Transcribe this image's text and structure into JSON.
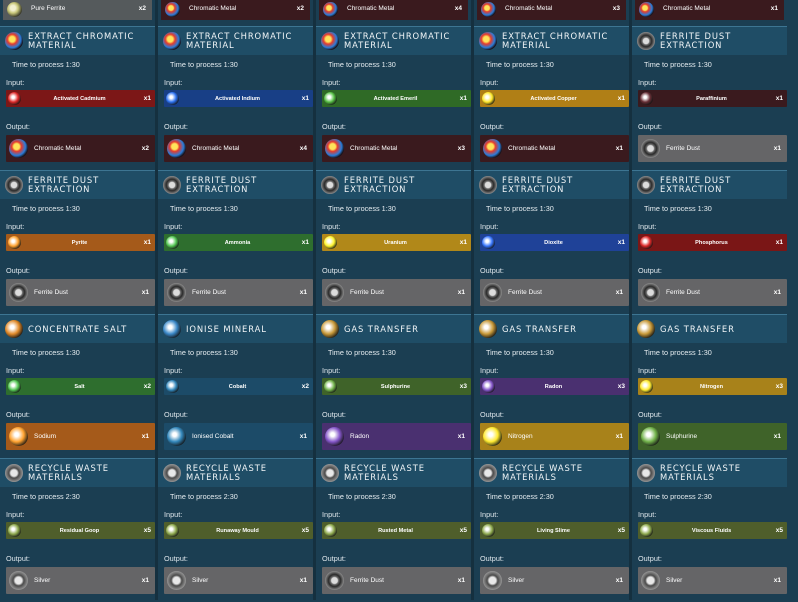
{
  "labels": {
    "input": "Input:",
    "output": "Output:"
  },
  "top_row": [
    {
      "name": "Pure Ferrite",
      "qty": "x2",
      "color": "#555a5c",
      "icon": "pure-ferrite-icon"
    },
    {
      "name": "Chromatic Metal",
      "qty": "x2",
      "color": "#3a1a1e",
      "icon": "chromatic-metal-icon"
    },
    {
      "name": "Chromatic Metal",
      "qty": "x4",
      "color": "#3a1a1e",
      "icon": "chromatic-metal-icon"
    },
    {
      "name": "Chromatic Metal",
      "qty": "x3",
      "color": "#3a1a1e",
      "icon": "chromatic-metal-icon"
    },
    {
      "name": "Chromatic Metal",
      "qty": "x1",
      "color": "#3a1a1e",
      "icon": "chromatic-metal-icon"
    }
  ],
  "rows": [
    [
      {
        "title": "Extract Chromatic\nMaterial",
        "time": "Time to process 1:30",
        "input": {
          "name": "Activated Cadmium",
          "qty": "x1",
          "color": "#7c1717",
          "icon": "activated-cadmium-icon"
        },
        "output": {
          "name": "Chromatic Metal",
          "qty": "x2",
          "color": "#3a1a1e",
          "icon": "chromatic-metal-icon"
        }
      },
      {
        "title": "Extract Chromatic\nMaterial",
        "time": "Time to process 1:30",
        "input": {
          "name": "Activated Indium",
          "qty": "x1",
          "color": "#183f86",
          "icon": "activated-indium-icon"
        },
        "output": {
          "name": "Chromatic Metal",
          "qty": "x4",
          "color": "#3a1a1e",
          "icon": "chromatic-metal-icon"
        }
      },
      {
        "title": "Extract Chromatic\nMaterial",
        "time": "Time to process 1:30",
        "input": {
          "name": "Activated Emeril",
          "qty": "x1",
          "color": "#2f6a26",
          "icon": "activated-emeril-icon"
        },
        "output": {
          "name": "Chromatic Metal",
          "qty": "x3",
          "color": "#3a1a1e",
          "icon": "chromatic-metal-icon"
        }
      },
      {
        "title": "Extract Chromatic\nMaterial",
        "time": "Time to process 1:30",
        "input": {
          "name": "Activated Copper",
          "qty": "x1",
          "color": "#b07f16",
          "icon": "activated-copper-icon"
        },
        "output": {
          "name": "Chromatic Metal",
          "qty": "x1",
          "color": "#3a1a1e",
          "icon": "chromatic-metal-icon"
        }
      },
      {
        "title": "Ferrite Dust Extraction",
        "time": "Time to process 1:30",
        "input": {
          "name": "Paraffinium",
          "qty": "x1",
          "color": "#3a1a1e",
          "icon": "paraffinium-icon"
        },
        "output": {
          "name": "Ferrite Dust",
          "qty": "x1",
          "color": "#656567",
          "icon": "ferrite-dust-icon"
        }
      }
    ],
    [
      {
        "title": "Ferrite Dust Extraction",
        "time": "Time to process 1:30",
        "input": {
          "name": "Pyrite",
          "qty": "x1",
          "color": "#a55a1a",
          "icon": "pyrite-icon"
        },
        "output": {
          "name": "Ferrite Dust",
          "qty": "x1",
          "color": "#656567",
          "icon": "ferrite-dust-icon"
        }
      },
      {
        "title": "Ferrite Dust Extraction",
        "time": "Time to process 1:30",
        "input": {
          "name": "Ammonia",
          "qty": "x1",
          "color": "#2e6e2e",
          "icon": "ammonia-icon"
        },
        "output": {
          "name": "Ferrite Dust",
          "qty": "x1",
          "color": "#656567",
          "icon": "ferrite-dust-icon"
        }
      },
      {
        "title": "Ferrite Dust Extraction",
        "time": "Time to process 1:30",
        "input": {
          "name": "Uranium",
          "qty": "x1",
          "color": "#b18819",
          "icon": "uranium-icon"
        },
        "output": {
          "name": "Ferrite Dust",
          "qty": "x1",
          "color": "#656567",
          "icon": "ferrite-dust-icon"
        }
      },
      {
        "title": "Ferrite Dust Extraction",
        "time": "Time to process 1:30",
        "input": {
          "name": "Dioxite",
          "qty": "x1",
          "color": "#1f4298",
          "icon": "dioxite-icon"
        },
        "output": {
          "name": "Ferrite Dust",
          "qty": "x1",
          "color": "#656567",
          "icon": "ferrite-dust-icon"
        }
      },
      {
        "title": "Ferrite Dust Extraction",
        "time": "Time to process 1:30",
        "input": {
          "name": "Phosphorus",
          "qty": "x1",
          "color": "#7a1616",
          "icon": "phosphorus-icon"
        },
        "output": {
          "name": "Ferrite Dust",
          "qty": "x1",
          "color": "#656567",
          "icon": "ferrite-dust-icon"
        }
      }
    ],
    [
      {
        "title": "Concentrate Salt",
        "time": "Time to process 1:30",
        "input": {
          "name": "Salt",
          "qty": "x2",
          "color": "#2e6e2e",
          "icon": "salt-icon"
        },
        "output": {
          "name": "Sodium",
          "qty": "x1",
          "color": "#a55a1a",
          "icon": "sodium-icon"
        }
      },
      {
        "title": "Ionise Mineral",
        "time": "Time to process 1:30",
        "input": {
          "name": "Cobalt",
          "qty": "x2",
          "color": "#1c4b68",
          "icon": "cobalt-icon"
        },
        "output": {
          "name": "Ionised Cobalt",
          "qty": "x1",
          "color": "#1c4b68",
          "icon": "ionised-cobalt-icon"
        }
      },
      {
        "title": "Gas Transfer",
        "time": "Time to process 1:30",
        "input": {
          "name": "Sulphurine",
          "qty": "x3",
          "color": "#3f6329",
          "icon": "sulphurine-icon"
        },
        "output": {
          "name": "Radon",
          "qty": "x1",
          "color": "#4a3070",
          "icon": "radon-icon"
        }
      },
      {
        "title": "Gas Transfer",
        "time": "Time to process 1:30",
        "input": {
          "name": "Radon",
          "qty": "x3",
          "color": "#4a3070",
          "icon": "radon-icon"
        },
        "output": {
          "name": "Nitrogen",
          "qty": "x1",
          "color": "#a8821a",
          "icon": "nitrogen-icon"
        }
      },
      {
        "title": "Gas Transfer",
        "time": "Time to process 1:30",
        "input": {
          "name": "Nitrogen",
          "qty": "x3",
          "color": "#a8821a",
          "icon": "nitrogen-icon"
        },
        "output": {
          "name": "Sulphurine",
          "qty": "x1",
          "color": "#3f6329",
          "icon": "sulphurine-icon"
        }
      }
    ],
    [
      {
        "title": "Recycle Waste\nMaterials",
        "time": "Time to process 2:30",
        "input": {
          "name": "Residual Goop",
          "qty": "x5",
          "color": "#4f5e2b",
          "icon": "residual-goop-icon"
        },
        "output": {
          "name": "Silver",
          "qty": "x1",
          "color": "#656567",
          "icon": "silver-icon"
        }
      },
      {
        "title": "Recycle Waste\nMaterials",
        "time": "Time to process 2:30",
        "input": {
          "name": "Runaway Mould",
          "qty": "x5",
          "color": "#4f5e2b",
          "icon": "runaway-mould-icon"
        },
        "output": {
          "name": "Silver",
          "qty": "x1",
          "color": "#656567",
          "icon": "silver-icon"
        }
      },
      {
        "title": "Recycle Waste\nMaterials",
        "time": "Time to process 2:30",
        "input": {
          "name": "Rusted Metal",
          "qty": "x5",
          "color": "#4f5e2b",
          "icon": "rusted-metal-icon"
        },
        "output": {
          "name": "Ferrite Dust",
          "qty": "x1",
          "color": "#656567",
          "icon": "ferrite-dust-icon"
        }
      },
      {
        "title": "Recycle Waste\nMaterials",
        "time": "Time to process 2:30",
        "input": {
          "name": "Living Slime",
          "qty": "x5",
          "color": "#4f5e2b",
          "icon": "living-slime-icon"
        },
        "output": {
          "name": "Silver",
          "qty": "x1",
          "color": "#656567",
          "icon": "silver-icon"
        }
      },
      {
        "title": "Recycle Waste\nMaterials",
        "time": "Time to process 2:30",
        "input": {
          "name": "Viscous Fluids",
          "qty": "x5",
          "color": "#4f5e2b",
          "icon": "viscous-fluids-icon"
        },
        "output": {
          "name": "Silver",
          "qty": "x1",
          "color": "#656567",
          "icon": "silver-icon"
        }
      }
    ]
  ]
}
